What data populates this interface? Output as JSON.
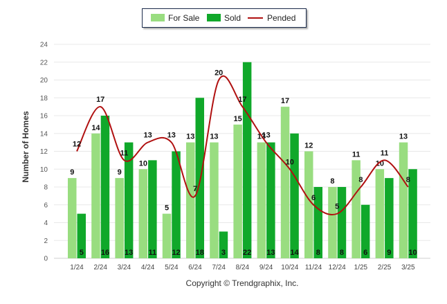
{
  "legend": {
    "for_sale": "For Sale",
    "sold": "Sold",
    "pended": "Pended"
  },
  "copyright": "Copyright © Trendgraphix, Inc.",
  "chart_data": {
    "type": "bar",
    "title": "",
    "xlabel": "",
    "ylabel": "Number of Homes",
    "ylim": [
      0,
      24
    ],
    "yticks": [
      0,
      2,
      4,
      6,
      8,
      10,
      12,
      14,
      16,
      18,
      20,
      22,
      24
    ],
    "grid": true,
    "legend_position": "top-center",
    "categories": [
      "1/24",
      "2/24",
      "3/24",
      "4/24",
      "5/24",
      "6/24",
      "7/24",
      "8/24",
      "9/24",
      "10/24",
      "11/24",
      "12/24",
      "1/25",
      "2/25",
      "3/25"
    ],
    "series": [
      {
        "name": "For Sale",
        "kind": "bar",
        "color": "#99dd80",
        "values": [
          9,
          14,
          9,
          10,
          5,
          13,
          13,
          15,
          13,
          17,
          12,
          8,
          11,
          10,
          13
        ]
      },
      {
        "name": "Sold",
        "kind": "bar",
        "color": "#10a82a",
        "values": [
          5,
          16,
          13,
          11,
          12,
          18,
          3,
          22,
          13,
          14,
          8,
          8,
          6,
          9,
          10
        ]
      },
      {
        "name": "Pended",
        "kind": "line",
        "color": "#b01010",
        "values": [
          12,
          17,
          11,
          13,
          13,
          7,
          20,
          17,
          13,
          10,
          6,
          5,
          8,
          11,
          8
        ]
      }
    ]
  }
}
